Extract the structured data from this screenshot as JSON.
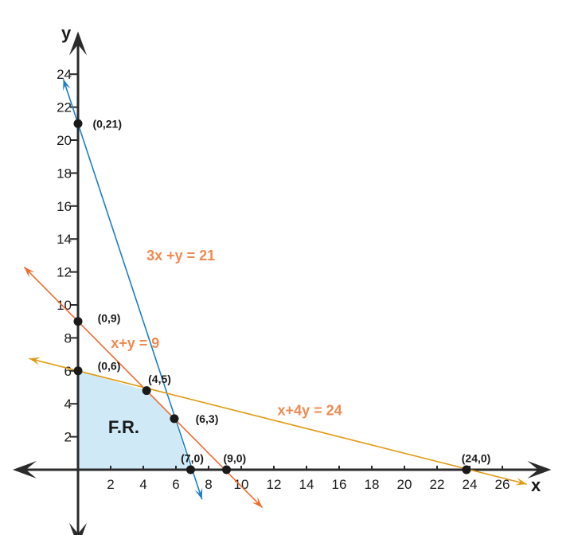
{
  "chart_data": {
    "type": "line",
    "xlabel": "x",
    "ylabel": "y",
    "xlim": [
      -4,
      29
    ],
    "ylim": [
      -4,
      26.5
    ],
    "x_ticks": [
      2,
      4,
      6,
      8,
      10,
      12,
      14,
      16,
      18,
      20,
      22,
      24,
      26
    ],
    "y_ticks": [
      2,
      4,
      6,
      8,
      10,
      12,
      14,
      16,
      18,
      20,
      22,
      24
    ],
    "grid": false,
    "lines": [
      {
        "label": "3x +y = 21",
        "a": 3,
        "b": 1,
        "c": 21,
        "color": "#1a7fc7",
        "label_color": "#f08a50",
        "x_from": -0.9,
        "x_to": 7.6,
        "label_at": [
          6.3,
          12.7
        ]
      },
      {
        "label": "x+y = 9",
        "a": 1,
        "b": 1,
        "c": 9,
        "color": "#f06a2c",
        "label_color": "#f08a50",
        "x_from": -3.3,
        "x_to": 11.3,
        "label_at": [
          3.5,
          7.4
        ]
      },
      {
        "label": "x+4y = 24",
        "a": 1,
        "b": 4,
        "c": 24,
        "color": "#e09a10",
        "label_color": "#f08a50",
        "x_from": -3.0,
        "x_to": 27.5,
        "label_at": [
          14.2,
          3.3
        ]
      }
    ],
    "points": [
      {
        "x": 0,
        "y": 21,
        "label": "(0,21)",
        "label_dx": 0.9,
        "label_dy": 0
      },
      {
        "x": 0,
        "y": 9,
        "label": "(0,9)",
        "label_dx": 1.2,
        "label_dy": 0.2
      },
      {
        "x": 0,
        "y": 6,
        "label": "(0,6)",
        "label_dx": 1.2,
        "label_dy": 0.3
      },
      {
        "x": 4.2,
        "y": 4.8,
        "label": "(4,5)",
        "label_dx": 0.1,
        "label_dy": 0.7
      },
      {
        "x": 5.9,
        "y": 3.1,
        "label": "(6,3)",
        "label_dx": 1.3,
        "label_dy": 0
      },
      {
        "x": 6.9,
        "y": 0,
        "label": "(7,0)",
        "label_dx": -0.6,
        "label_dy": 0.7
      },
      {
        "x": 9.1,
        "y": 0,
        "label": "(9,0)",
        "label_dx": -0.2,
        "label_dy": 0.7
      },
      {
        "x": 23.8,
        "y": 0,
        "label": "(24,0)",
        "label_dx": -0.3,
        "label_dy": 0.7
      }
    ],
    "feasible_region": {
      "label": "F.R.",
      "vertices": [
        [
          0,
          0
        ],
        [
          0,
          6
        ],
        [
          4.2,
          4.8
        ],
        [
          5.9,
          3.1
        ],
        [
          6.9,
          0
        ]
      ],
      "color": "#cfe9f7",
      "label_at": [
        2.8,
        2.6
      ]
    }
  }
}
